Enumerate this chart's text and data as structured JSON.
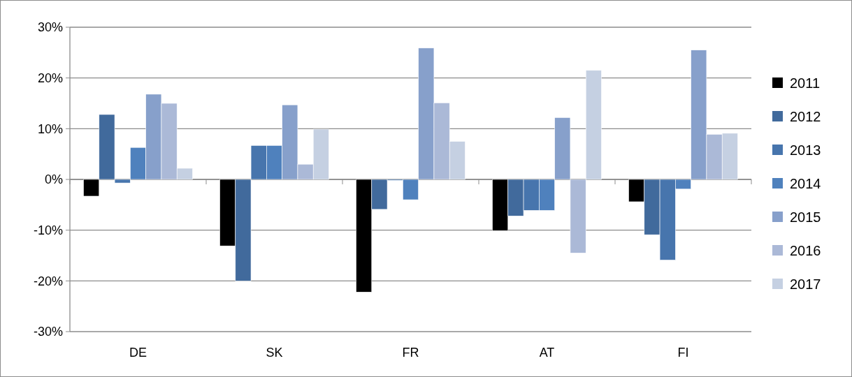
{
  "chart_data": {
    "type": "bar",
    "categories": [
      "DE",
      "SK",
      "FR",
      "AT",
      "FI"
    ],
    "series": [
      {
        "name": "2011",
        "color": "#000000",
        "values": [
          -3.3,
          -13.1,
          -22.2,
          -10.1,
          -4.4
        ]
      },
      {
        "name": "2012",
        "color": "#416a9c",
        "values": [
          12.8,
          -20.0,
          -5.9,
          -7.2,
          -10.9
        ]
      },
      {
        "name": "2013",
        "color": "#4775ad",
        "values": [
          -0.7,
          6.7,
          -0.2,
          -6.1,
          -15.9
        ]
      },
      {
        "name": "2014",
        "color": "#4f81bd",
        "values": [
          6.3,
          6.7,
          -4.0,
          -6.1,
          -1.9
        ]
      },
      {
        "name": "2015",
        "color": "#87a0cb",
        "values": [
          16.8,
          14.7,
          25.9,
          12.2,
          25.5
        ]
      },
      {
        "name": "2016",
        "color": "#abb9d7",
        "values": [
          15.0,
          3.0,
          15.1,
          -14.5,
          8.9
        ]
      },
      {
        "name": "2017",
        "color": "#c5d0e2",
        "values": [
          2.2,
          9.9,
          7.5,
          21.5,
          9.1
        ]
      }
    ],
    "ylim": [
      -30,
      30
    ],
    "yticks": [
      {
        "value": -30,
        "label": "-30%"
      },
      {
        "value": -20,
        "label": "-20%"
      },
      {
        "value": -10,
        "label": "-10%"
      },
      {
        "value": 0,
        "label": "0%"
      },
      {
        "value": 10,
        "label": "10%"
      },
      {
        "value": 20,
        "label": "20%"
      },
      {
        "value": 30,
        "label": "30%"
      }
    ],
    "grid": "y",
    "legend": "right"
  }
}
